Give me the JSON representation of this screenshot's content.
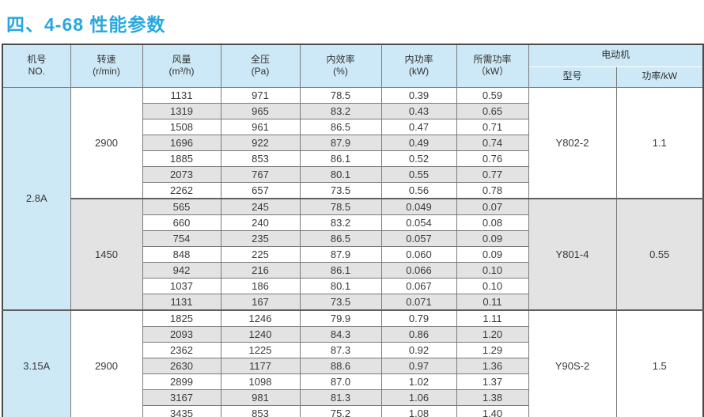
{
  "page": {
    "title": "四、4-68 性能参数"
  },
  "colors": {
    "title_blue": "#29a7de",
    "header_bg": "#cde8f6",
    "model_column_bg": "#cde9f6",
    "stripe_gray": "#e3e3e3",
    "inner_border": "#7a7a7a",
    "outer_border": "#4a4a4a",
    "text": "#3a3a3a"
  },
  "table": {
    "headers": [
      {
        "label": "机号",
        "sub": "NO."
      },
      {
        "label": "转速",
        "sub": "(r/min)"
      },
      {
        "label": "风量",
        "sub": "(m³/h)"
      },
      {
        "label": "全压",
        "sub": "(Pa)"
      },
      {
        "label": "内效率",
        "sub": "(%)"
      },
      {
        "label": "内功率",
        "sub": "(kW)"
      },
      {
        "label": "所需功率",
        "sub": "（kW）"
      }
    ],
    "motor_header": {
      "label": "电动机",
      "model_label": "型号",
      "power_label": "功率/kW"
    },
    "column_meanings": [
      "风量",
      "全压",
      "内效率",
      "内功率",
      "所需功率"
    ],
    "groups": [
      {
        "model": "2.8A",
        "speed_groups": [
          {
            "speed": "2900",
            "motor_model": "Y802-2",
            "motor_power": "1.1",
            "shaded": false,
            "rows": [
              [
                "1131",
                "971",
                "78.5",
                "0.39",
                "0.59"
              ],
              [
                "1319",
                "965",
                "83.2",
                "0.43",
                "0.65"
              ],
              [
                "1508",
                "961",
                "86.5",
                "0.47",
                "0.71"
              ],
              [
                "1696",
                "922",
                "87.9",
                "0.49",
                "0.74"
              ],
              [
                "1885",
                "853",
                "86.1",
                "0.52",
                "0.76"
              ],
              [
                "2073",
                "767",
                "80.1",
                "0.55",
                "0.77"
              ],
              [
                "2262",
                "657",
                "73.5",
                "0.56",
                "0.78"
              ]
            ]
          },
          {
            "speed": "1450",
            "motor_model": "Y801-4",
            "motor_power": "0.55",
            "shaded": true,
            "rows": [
              [
                "565",
                "245",
                "78.5",
                "0.049",
                "0.07"
              ],
              [
                "660",
                "240",
                "83.2",
                "0.054",
                "0.08"
              ],
              [
                "754",
                "235",
                "86.5",
                "0.057",
                "0.09"
              ],
              [
                "848",
                "225",
                "87.9",
                "0.060",
                "0.09"
              ],
              [
                "942",
                "216",
                "86.1",
                "0.066",
                "0.10"
              ],
              [
                "1037",
                "186",
                "80.1",
                "0.067",
                "0.10"
              ],
              [
                "1131",
                "167",
                "73.5",
                "0.071",
                "0.11"
              ]
            ]
          }
        ]
      },
      {
        "model": "3.15A",
        "speed_groups": [
          {
            "speed": "2900",
            "motor_model": "Y90S-2",
            "motor_power": "1.5",
            "shaded": false,
            "rows": [
              [
                "1825",
                "1246",
                "79.9",
                "0.79",
                "1.11"
              ],
              [
                "2093",
                "1240",
                "84.3",
                "0.86",
                "1.20"
              ],
              [
                "2362",
                "1225",
                "87.3",
                "0.92",
                "1.29"
              ],
              [
                "2630",
                "1177",
                "88.6",
                "0.97",
                "1.36"
              ],
              [
                "2899",
                "1098",
                "87.0",
                "1.02",
                "1.37"
              ],
              [
                "3167",
                "981",
                "81.3",
                "1.06",
                "1.38"
              ],
              [
                "3435",
                "853",
                "75.2",
                "1.08",
                "1.40"
              ]
            ]
          }
        ]
      }
    ]
  }
}
